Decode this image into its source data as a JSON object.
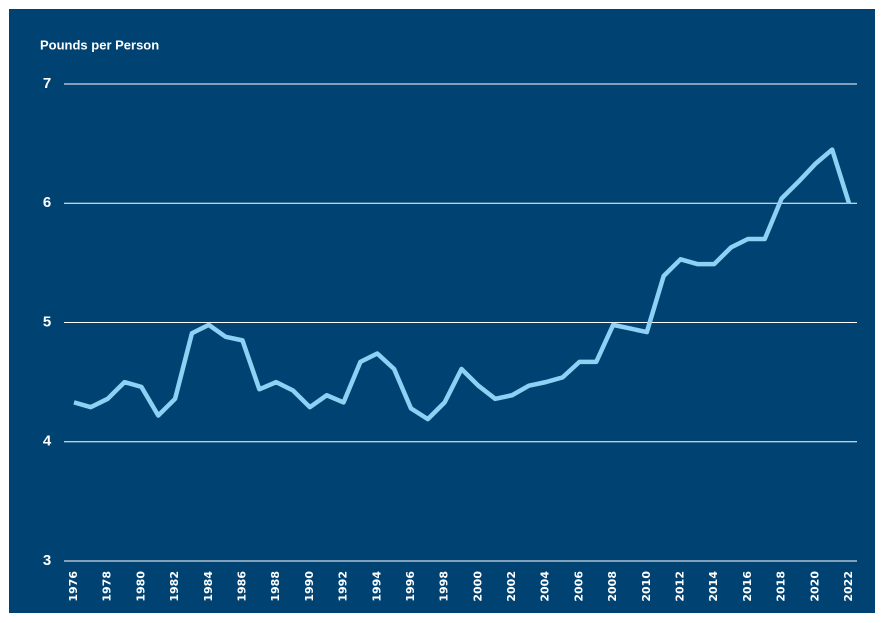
{
  "chart_data": {
    "type": "line",
    "y_label": "Pounds per Person",
    "x": [
      1976,
      1977,
      1978,
      1979,
      1980,
      1981,
      1982,
      1983,
      1984,
      1985,
      1986,
      1987,
      1988,
      1989,
      1990,
      1991,
      1992,
      1993,
      1994,
      1995,
      1996,
      1997,
      1998,
      1999,
      2000,
      2001,
      2002,
      2003,
      2004,
      2005,
      2006,
      2007,
      2008,
      2009,
      2010,
      2011,
      2012,
      2013,
      2014,
      2015,
      2016,
      2017,
      2018,
      2019,
      2020,
      2021,
      2022
    ],
    "series": [
      {
        "color": "#8fd0f5",
        "values": [
          4.33,
          4.29,
          4.36,
          4.5,
          4.46,
          4.22,
          4.36,
          4.91,
          4.98,
          4.88,
          4.85,
          4.44,
          4.5,
          4.43,
          4.29,
          4.39,
          4.33,
          4.67,
          4.74,
          4.61,
          4.28,
          4.19,
          4.33,
          4.61,
          4.47,
          4.36,
          4.39,
          4.47,
          4.5,
          4.54,
          4.67,
          4.67,
          4.98,
          4.95,
          4.92,
          5.39,
          5.53,
          5.49,
          5.49,
          5.63,
          5.7,
          5.7,
          6.04,
          6.18,
          6.33,
          6.45,
          6.0
        ]
      }
    ],
    "xlim": [
      1976,
      2022
    ],
    "xticks": [
      1976,
      1978,
      1980,
      1982,
      1984,
      1986,
      1988,
      1990,
      1992,
      1994,
      1996,
      1998,
      2000,
      2002,
      2004,
      2006,
      2008,
      2010,
      2012,
      2014,
      2016,
      2018,
      2020,
      2022
    ],
    "ylim": [
      3,
      7
    ],
    "yticks": [
      3,
      4,
      5,
      6,
      7
    ],
    "grid": true,
    "background": "#004373"
  }
}
